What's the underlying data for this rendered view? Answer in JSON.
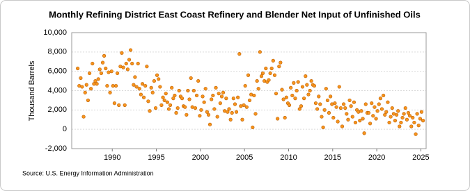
{
  "chart_data": {
    "type": "scatter",
    "title": "Monthly Refining District East Coast Refinery and Blender Net Input of Unfinished Oils",
    "y_label": "Thousand Barrels",
    "source": "Source: U.S. Energy Information Administration",
    "color": "#f7941d",
    "edge_color": "#b85c00",
    "grid": true,
    "xlim": [
      1985.4,
      2025.6
    ],
    "xticks": [
      1990,
      1995,
      2000,
      2005,
      2010,
      2015,
      2020,
      2025
    ],
    "ylim": [
      -2000,
      10000
    ],
    "yticks": [
      {
        "value": -2000,
        "label": "-2,000"
      },
      0,
      {
        "value": 2000,
        "label": "2,000"
      },
      {
        "value": 4000,
        "label": "4,000"
      },
      {
        "value": 6000,
        "label": "6,000"
      },
      {
        "value": 8000,
        "label": "8,000"
      },
      {
        "value": 10000,
        "label": "10,000"
      }
    ],
    "series": [
      {
        "name": "East Coast",
        "x": [
          1986.08,
          1986.25,
          1986.42,
          1986.58,
          1986.75,
          1986.92,
          1987.08,
          1987.25,
          1987.42,
          1987.58,
          1987.75,
          1987.92,
          1988.08,
          1988.25,
          1988.42,
          1988.58,
          1988.75,
          1988.92,
          1989.08,
          1989.25,
          1989.42,
          1989.58,
          1989.75,
          1989.92,
          1990.08,
          1990.25,
          1990.42,
          1990.58,
          1990.75,
          1990.92,
          1991.08,
          1991.25,
          1991.42,
          1991.58,
          1991.75,
          1991.92,
          1992.08,
          1992.25,
          1992.42,
          1992.58,
          1992.75,
          1992.92,
          1993.08,
          1993.25,
          1993.42,
          1993.58,
          1993.75,
          1993.92,
          1994.08,
          1994.25,
          1994.42,
          1994.58,
          1994.75,
          1994.92,
          1995.08,
          1995.25,
          1995.42,
          1995.58,
          1995.75,
          1995.92,
          1996.08,
          1996.25,
          1996.42,
          1996.58,
          1996.75,
          1996.92,
          1997.08,
          1997.25,
          1997.42,
          1997.58,
          1997.75,
          1997.92,
          1998.08,
          1998.25,
          1998.42,
          1998.58,
          1998.75,
          1998.92,
          1999.08,
          1999.25,
          1999.42,
          1999.58,
          1999.75,
          1999.92,
          2000.08,
          2000.25,
          2000.42,
          2000.58,
          2000.75,
          2000.92,
          2001.08,
          2001.25,
          2001.42,
          2001.58,
          2001.75,
          2001.92,
          2002.08,
          2002.25,
          2002.42,
          2002.58,
          2002.75,
          2002.92,
          2003.08,
          2003.25,
          2003.42,
          2003.58,
          2003.75,
          2003.92,
          2004.08,
          2004.25,
          2004.42,
          2004.58,
          2004.75,
          2004.92,
          2005.08,
          2005.25,
          2005.42,
          2005.58,
          2005.75,
          2005.92,
          2006.08,
          2006.25,
          2006.42,
          2006.58,
          2006.75,
          2006.92,
          2007.08,
          2007.25,
          2007.42,
          2007.58,
          2007.75,
          2007.92,
          2008.08,
          2008.25,
          2008.42,
          2008.58,
          2008.75,
          2008.92,
          2009.08,
          2009.25,
          2009.42,
          2009.58,
          2009.75,
          2009.92,
          2010.08,
          2010.25,
          2010.42,
          2010.58,
          2010.75,
          2010.92,
          2011.08,
          2011.25,
          2011.42,
          2011.58,
          2011.75,
          2011.92,
          2012.08,
          2012.25,
          2012.42,
          2012.58,
          2012.75,
          2012.92,
          2013.08,
          2013.25,
          2013.42,
          2013.58,
          2013.75,
          2013.92,
          2014.08,
          2014.25,
          2014.42,
          2014.58,
          2014.75,
          2014.92,
          2015.08,
          2015.25,
          2015.42,
          2015.58,
          2015.75,
          2015.92,
          2016.08,
          2016.25,
          2016.42,
          2016.58,
          2016.75,
          2016.92,
          2017.08,
          2017.25,
          2017.42,
          2017.58,
          2017.75,
          2017.92,
          2018.08,
          2018.25,
          2018.42,
          2018.58,
          2018.75,
          2018.92,
          2019.08,
          2019.25,
          2019.42,
          2019.58,
          2019.75,
          2019.92,
          2020.08,
          2020.25,
          2020.42,
          2020.58,
          2020.75,
          2020.92,
          2021.08,
          2021.25,
          2021.42,
          2021.58,
          2021.75,
          2021.92,
          2022.08,
          2022.25,
          2022.42,
          2022.58,
          2022.75,
          2022.92,
          2023.08,
          2023.25,
          2023.42,
          2023.58,
          2023.75,
          2023.92,
          2024.08,
          2024.25,
          2024.42,
          2024.58,
          2024.75,
          2024.92,
          2025.08,
          2025.25
        ],
        "values": [
          6300,
          4500,
          5300,
          4400,
          1300,
          3800,
          4600,
          3000,
          5800,
          4200,
          6800,
          4700,
          5000,
          4700,
          5200,
          6200,
          5800,
          6900,
          7600,
          6300,
          4500,
          5900,
          3800,
          6000,
          4500,
          2700,
          4500,
          5800,
          2500,
          6500,
          7900,
          6400,
          2500,
          6800,
          6200,
          7200,
          8200,
          6800,
          4600,
          5400,
          4400,
          6800,
          4200,
          3600,
          4700,
          3300,
          4500,
          6500,
          2900,
          1900,
          4300,
          3800,
          5000,
          2200,
          5600,
          5200,
          4400,
          2500,
          3300,
          3000,
          3700,
          2800,
          2100,
          2500,
          4300,
          3200,
          3500,
          1700,
          2200,
          4000,
          3400,
          3200,
          2400,
          2300,
          1500,
          4000,
          3100,
          5300,
          2300,
          4000,
          2200,
          3500,
          5000,
          1400,
          2000,
          3400,
          2800,
          4200,
          1800,
          1500,
          500,
          3100,
          3500,
          2100,
          4300,
          1300,
          3700,
          2700,
          3400,
          3800,
          1900,
          3200,
          1800,
          2100,
          1000,
          1700,
          3200,
          2600,
          1800,
          3300,
          7800,
          2400,
          1000,
          2500,
          4500,
          2300,
          5600,
          3000,
          3600,
          200,
          3500,
          1600,
          5000,
          4200,
          8000,
          5500,
          5800,
          5000,
          6300,
          4900,
          5100,
          5800,
          6300,
          7100,
          5600,
          3700,
          1100,
          6500,
          6900,
          4100,
          3100,
          1200,
          3300,
          2700,
          2500,
          4300,
          3500,
          4800,
          3200,
          4000,
          4900,
          2100,
          2400,
          4400,
          3200,
          5500,
          4600,
          3600,
          4000,
          5000,
          4600,
          4500,
          2700,
          2100,
          3400,
          2600,
          1300,
          200,
          2000,
          4200,
          3000,
          1700,
          3400,
          2600,
          1200,
          2700,
          2300,
          800,
          4400,
          2200,
          300,
          2600,
          2200,
          1600,
          1000,
          3000,
          2400,
          1300,
          2800,
          700,
          2000,
          1800,
          900,
          1900,
          1100,
          -400,
          2600,
          1700,
          1700,
          600,
          2700,
          1400,
          2300,
          1100,
          1900,
          2600,
          3200,
          2100,
          3500,
          1500,
          1800,
          2800,
          700,
          1300,
          2200,
          1600,
          900,
          1500,
          1900,
          300,
          700,
          1200,
          1600,
          2200,
          1000,
          1700,
          1400,
          300,
          1200,
          700,
          -500,
          1600,
          400,
          1100,
          1800,
          900
        ]
      }
    ]
  }
}
